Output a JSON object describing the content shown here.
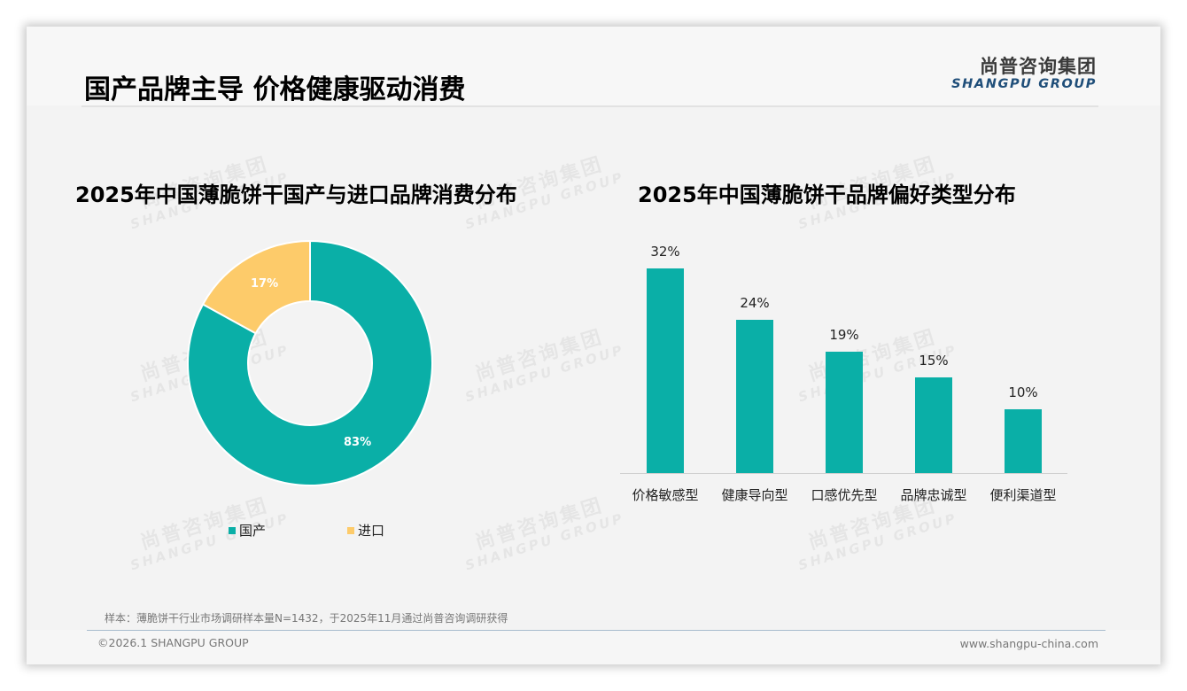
{
  "header": {
    "title": "国产品牌主导 价格健康驱动消费",
    "logo_cn": "尚普咨询集团",
    "logo_en": "SHANGPU GROUP"
  },
  "watermark": {
    "cn": "尚普咨询集团",
    "en": "SHANGPU GROUP"
  },
  "colors": {
    "teal": "#0aafa7",
    "yellow": "#fdcb6a",
    "background": "#f3f3f3"
  },
  "left_chart": {
    "title": "2025年中国薄脆饼干国产与进口品牌消费分布",
    "slices": [
      {
        "label": "国产",
        "value_label": "83%",
        "color": "#0aafa7"
      },
      {
        "label": "进口",
        "value_label": "17%",
        "color": "#fdcb6a"
      }
    ]
  },
  "right_chart": {
    "title": "2025年中国薄脆饼干品牌偏好类型分布",
    "bars": [
      {
        "category": "价格敏感型",
        "value_label": "32%"
      },
      {
        "category": "健康导向型",
        "value_label": "24%"
      },
      {
        "category": "口感优先型",
        "value_label": "19%"
      },
      {
        "category": "品牌忠诚型",
        "value_label": "15%"
      },
      {
        "category": "便利渠道型",
        "value_label": "10%"
      }
    ]
  },
  "chart_data": [
    {
      "type": "pie",
      "title": "2025年中国薄脆饼干国产与进口品牌消费分布",
      "donut": true,
      "categories": [
        "国产",
        "进口"
      ],
      "values": [
        83,
        17
      ],
      "unit": "%",
      "colors": [
        "#0aafa7",
        "#fdcb6a"
      ],
      "legend_position": "bottom"
    },
    {
      "type": "bar",
      "title": "2025年中国薄脆饼干品牌偏好类型分布",
      "categories": [
        "价格敏感型",
        "健康导向型",
        "口感优先型",
        "品牌忠诚型",
        "便利渠道型"
      ],
      "values": [
        32,
        24,
        19,
        15,
        10
      ],
      "unit": "%",
      "xlabel": "",
      "ylabel": "",
      "ylim": [
        0,
        35
      ],
      "grid": false,
      "data_labels": true,
      "color": "#0aafa7"
    }
  ],
  "footer": {
    "note": "样本：薄脆饼干行业市场调研样本量N=1432，于2025年11月通过尚普咨询调研获得",
    "copyright": "©2026.1 SHANGPU GROUP",
    "website": "www.shangpu-china.com"
  }
}
